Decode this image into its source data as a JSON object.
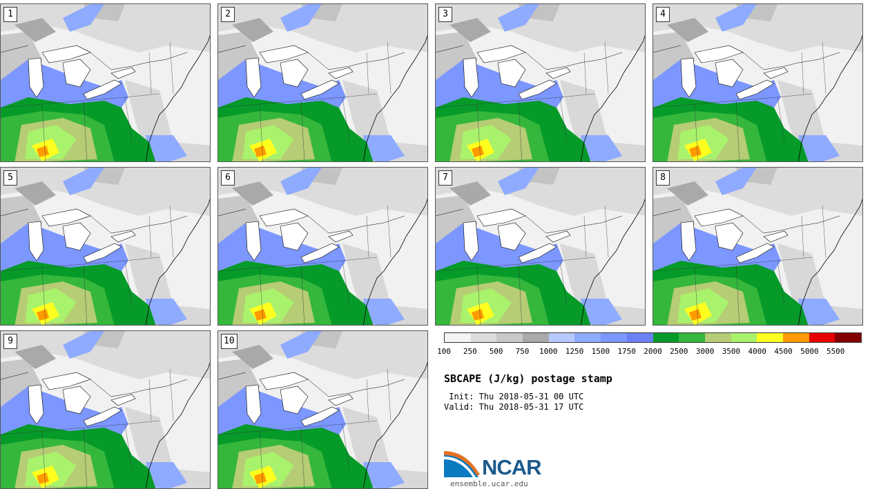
{
  "members": [
    "1",
    "2",
    "3",
    "4",
    "5",
    "6",
    "7",
    "8",
    "9",
    "10"
  ],
  "colorbar": {
    "colors": [
      "#f4f4f4",
      "#dcdcdc",
      "#c8c8c8",
      "#a9a9a9",
      "#b7c9ff",
      "#8eabff",
      "#7c97ff",
      "#6b80f5",
      "#069a29",
      "#35b73c",
      "#b6cc75",
      "#a9f26c",
      "#ffff1f",
      "#ff9b00",
      "#e80000",
      "#820000"
    ],
    "ticks": [
      "100",
      "250",
      "500",
      "750",
      "1000",
      "1250",
      "1500",
      "1750",
      "2000",
      "2500",
      "3000",
      "3500",
      "4000",
      "4500",
      "5000",
      "5500"
    ]
  },
  "title": "SBCAPE (J/kg) postage stamp",
  "init_line": " Init: Thu 2018-05-31 00 UTC",
  "valid_line": "Valid: Thu 2018-05-31 17 UTC",
  "logo_text": "NCAR",
  "website": "ensemble.ucar.edu"
}
